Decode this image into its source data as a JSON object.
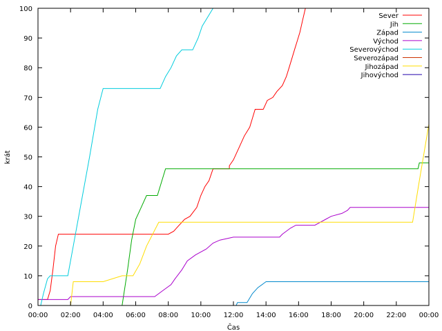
{
  "chart_data": {
    "type": "line",
    "title": "",
    "xlabel": "Čas",
    "ylabel": "krát",
    "xlim": [
      0,
      1440
    ],
    "ylim": [
      0,
      100
    ],
    "grid": false,
    "legend_position": "top-right",
    "x_unit": "minutes",
    "x_ticks": [
      0,
      120,
      240,
      360,
      480,
      600,
      720,
      840,
      960,
      1080,
      1200,
      1320,
      1440
    ],
    "x_tick_labels": [
      "00:00",
      "02:00",
      "04:00",
      "06:00",
      "08:00",
      "10:00",
      "12:00",
      "14:00",
      "16:00",
      "18:00",
      "20:00",
      "22:00",
      "00:00"
    ],
    "y_ticks": [
      0,
      10,
      20,
      30,
      40,
      50,
      60,
      70,
      80,
      90,
      100
    ],
    "y_tick_labels": [
      "0",
      "10",
      "20",
      "30",
      "40",
      "50",
      "60",
      "70",
      "80",
      "90",
      "100"
    ],
    "series": [
      {
        "name": "Sever",
        "color": "#ff0000",
        "points": [
          [
            0,
            2
          ],
          [
            35,
            2
          ],
          [
            45,
            5
          ],
          [
            55,
            12
          ],
          [
            65,
            20
          ],
          [
            75,
            24
          ],
          [
            480,
            24
          ],
          [
            500,
            25
          ],
          [
            520,
            27
          ],
          [
            540,
            29
          ],
          [
            560,
            30
          ],
          [
            585,
            33
          ],
          [
            600,
            37
          ],
          [
            615,
            40
          ],
          [
            630,
            42
          ],
          [
            645,
            46
          ],
          [
            705,
            46
          ],
          [
            705,
            47
          ],
          [
            720,
            49
          ],
          [
            740,
            53
          ],
          [
            760,
            57
          ],
          [
            780,
            60
          ],
          [
            790,
            63
          ],
          [
            800,
            66
          ],
          [
            830,
            66
          ],
          [
            845,
            69
          ],
          [
            865,
            70
          ],
          [
            880,
            72
          ],
          [
            900,
            74
          ],
          [
            915,
            77
          ],
          [
            925,
            80
          ],
          [
            935,
            83
          ],
          [
            945,
            86
          ],
          [
            955,
            89
          ],
          [
            965,
            92
          ],
          [
            975,
            96
          ],
          [
            980,
            98
          ],
          [
            985,
            100
          ]
        ]
      },
      {
        "name": "Jih",
        "color": "#00aa00",
        "points": [
          [
            0,
            0
          ],
          [
            310,
            0
          ],
          [
            330,
            12
          ],
          [
            345,
            22
          ],
          [
            360,
            29
          ],
          [
            380,
            33
          ],
          [
            400,
            37
          ],
          [
            440,
            37
          ],
          [
            470,
            46
          ],
          [
            1400,
            46
          ],
          [
            1405,
            48
          ],
          [
            1440,
            48
          ]
        ]
      },
      {
        "name": "Západ",
        "color": "#0088cc",
        "points": [
          [
            0,
            0
          ],
          [
            730,
            0
          ],
          [
            735,
            1
          ],
          [
            770,
            1
          ],
          [
            790,
            4
          ],
          [
            810,
            6
          ],
          [
            840,
            8
          ],
          [
            1440,
            8
          ]
        ]
      },
      {
        "name": "Východ",
        "color": "#aa00cc",
        "points": [
          [
            0,
            2
          ],
          [
            110,
            2
          ],
          [
            120,
            3
          ],
          [
            430,
            3
          ],
          [
            460,
            5
          ],
          [
            490,
            7
          ],
          [
            505,
            9
          ],
          [
            530,
            12
          ],
          [
            550,
            15
          ],
          [
            580,
            17
          ],
          [
            620,
            19
          ],
          [
            645,
            21
          ],
          [
            670,
            22
          ],
          [
            720,
            23
          ],
          [
            890,
            23
          ],
          [
            900,
            24
          ],
          [
            930,
            26
          ],
          [
            950,
            27
          ],
          [
            1020,
            27
          ],
          [
            1060,
            29
          ],
          [
            1080,
            30
          ],
          [
            1120,
            31
          ],
          [
            1140,
            32
          ],
          [
            1150,
            33
          ],
          [
            1440,
            33
          ]
        ]
      },
      {
        "name": "Severovýchod",
        "color": "#00ccdd",
        "points": [
          [
            0,
            0
          ],
          [
            10,
            0
          ],
          [
            20,
            4
          ],
          [
            35,
            9
          ],
          [
            45,
            10
          ],
          [
            110,
            10
          ],
          [
            130,
            20
          ],
          [
            160,
            35
          ],
          [
            190,
            50
          ],
          [
            220,
            66
          ],
          [
            240,
            73
          ],
          [
            450,
            73
          ],
          [
            470,
            77
          ],
          [
            490,
            80
          ],
          [
            510,
            84
          ],
          [
            530,
            86
          ],
          [
            570,
            86
          ],
          [
            590,
            90
          ],
          [
            605,
            94
          ],
          [
            625,
            97
          ],
          [
            645,
            100
          ]
        ]
      },
      {
        "name": "Severozápad",
        "color": "#cc3300",
        "points": []
      },
      {
        "name": "Jihozápad",
        "color": "#ffdd00",
        "points": [
          [
            0,
            0
          ],
          [
            120,
            0
          ],
          [
            130,
            8
          ],
          [
            240,
            8
          ],
          [
            310,
            10
          ],
          [
            350,
            10
          ],
          [
            375,
            14
          ],
          [
            400,
            20
          ],
          [
            445,
            28
          ],
          [
            1380,
            28
          ],
          [
            1405,
            42
          ],
          [
            1440,
            61
          ]
        ]
      },
      {
        "name": "Jihovýchod",
        "color": "#2200aa",
        "points": []
      }
    ]
  }
}
